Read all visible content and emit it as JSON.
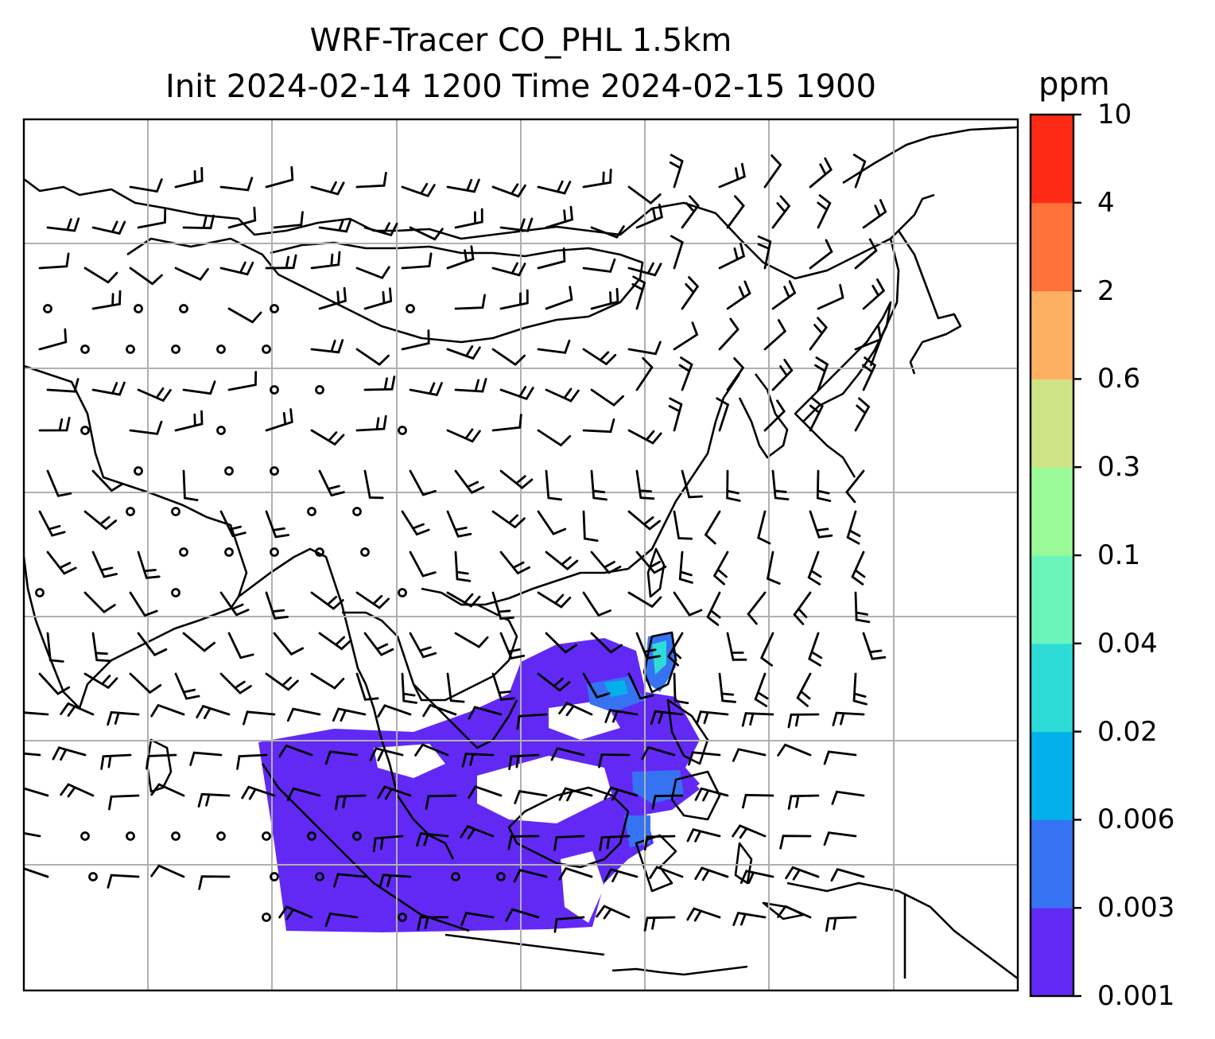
{
  "title": {
    "line1": "WRF-Tracer CO_PHL 1.5km",
    "line2": "Init 2024-02-14 1200 Time 2024-02-15 1900"
  },
  "colorbar": {
    "unit": "ppm",
    "levels": [
      "0.001",
      "0.003",
      "0.006",
      "0.02",
      "0.04",
      "0.1",
      "0.3",
      "0.6",
      "2",
      "4",
      "10"
    ],
    "colors": [
      "#6229f5",
      "#3573f2",
      "#02b1ec",
      "#2ddcd7",
      "#6af6bb",
      "#9afa98",
      "#cee385",
      "#fdb062",
      "#ff7239",
      "#ff2a15"
    ]
  },
  "map": {
    "coastline_color": "#000000",
    "gridline_color": "#b0b0b0",
    "tracer_field": "CO_PHL"
  }
}
